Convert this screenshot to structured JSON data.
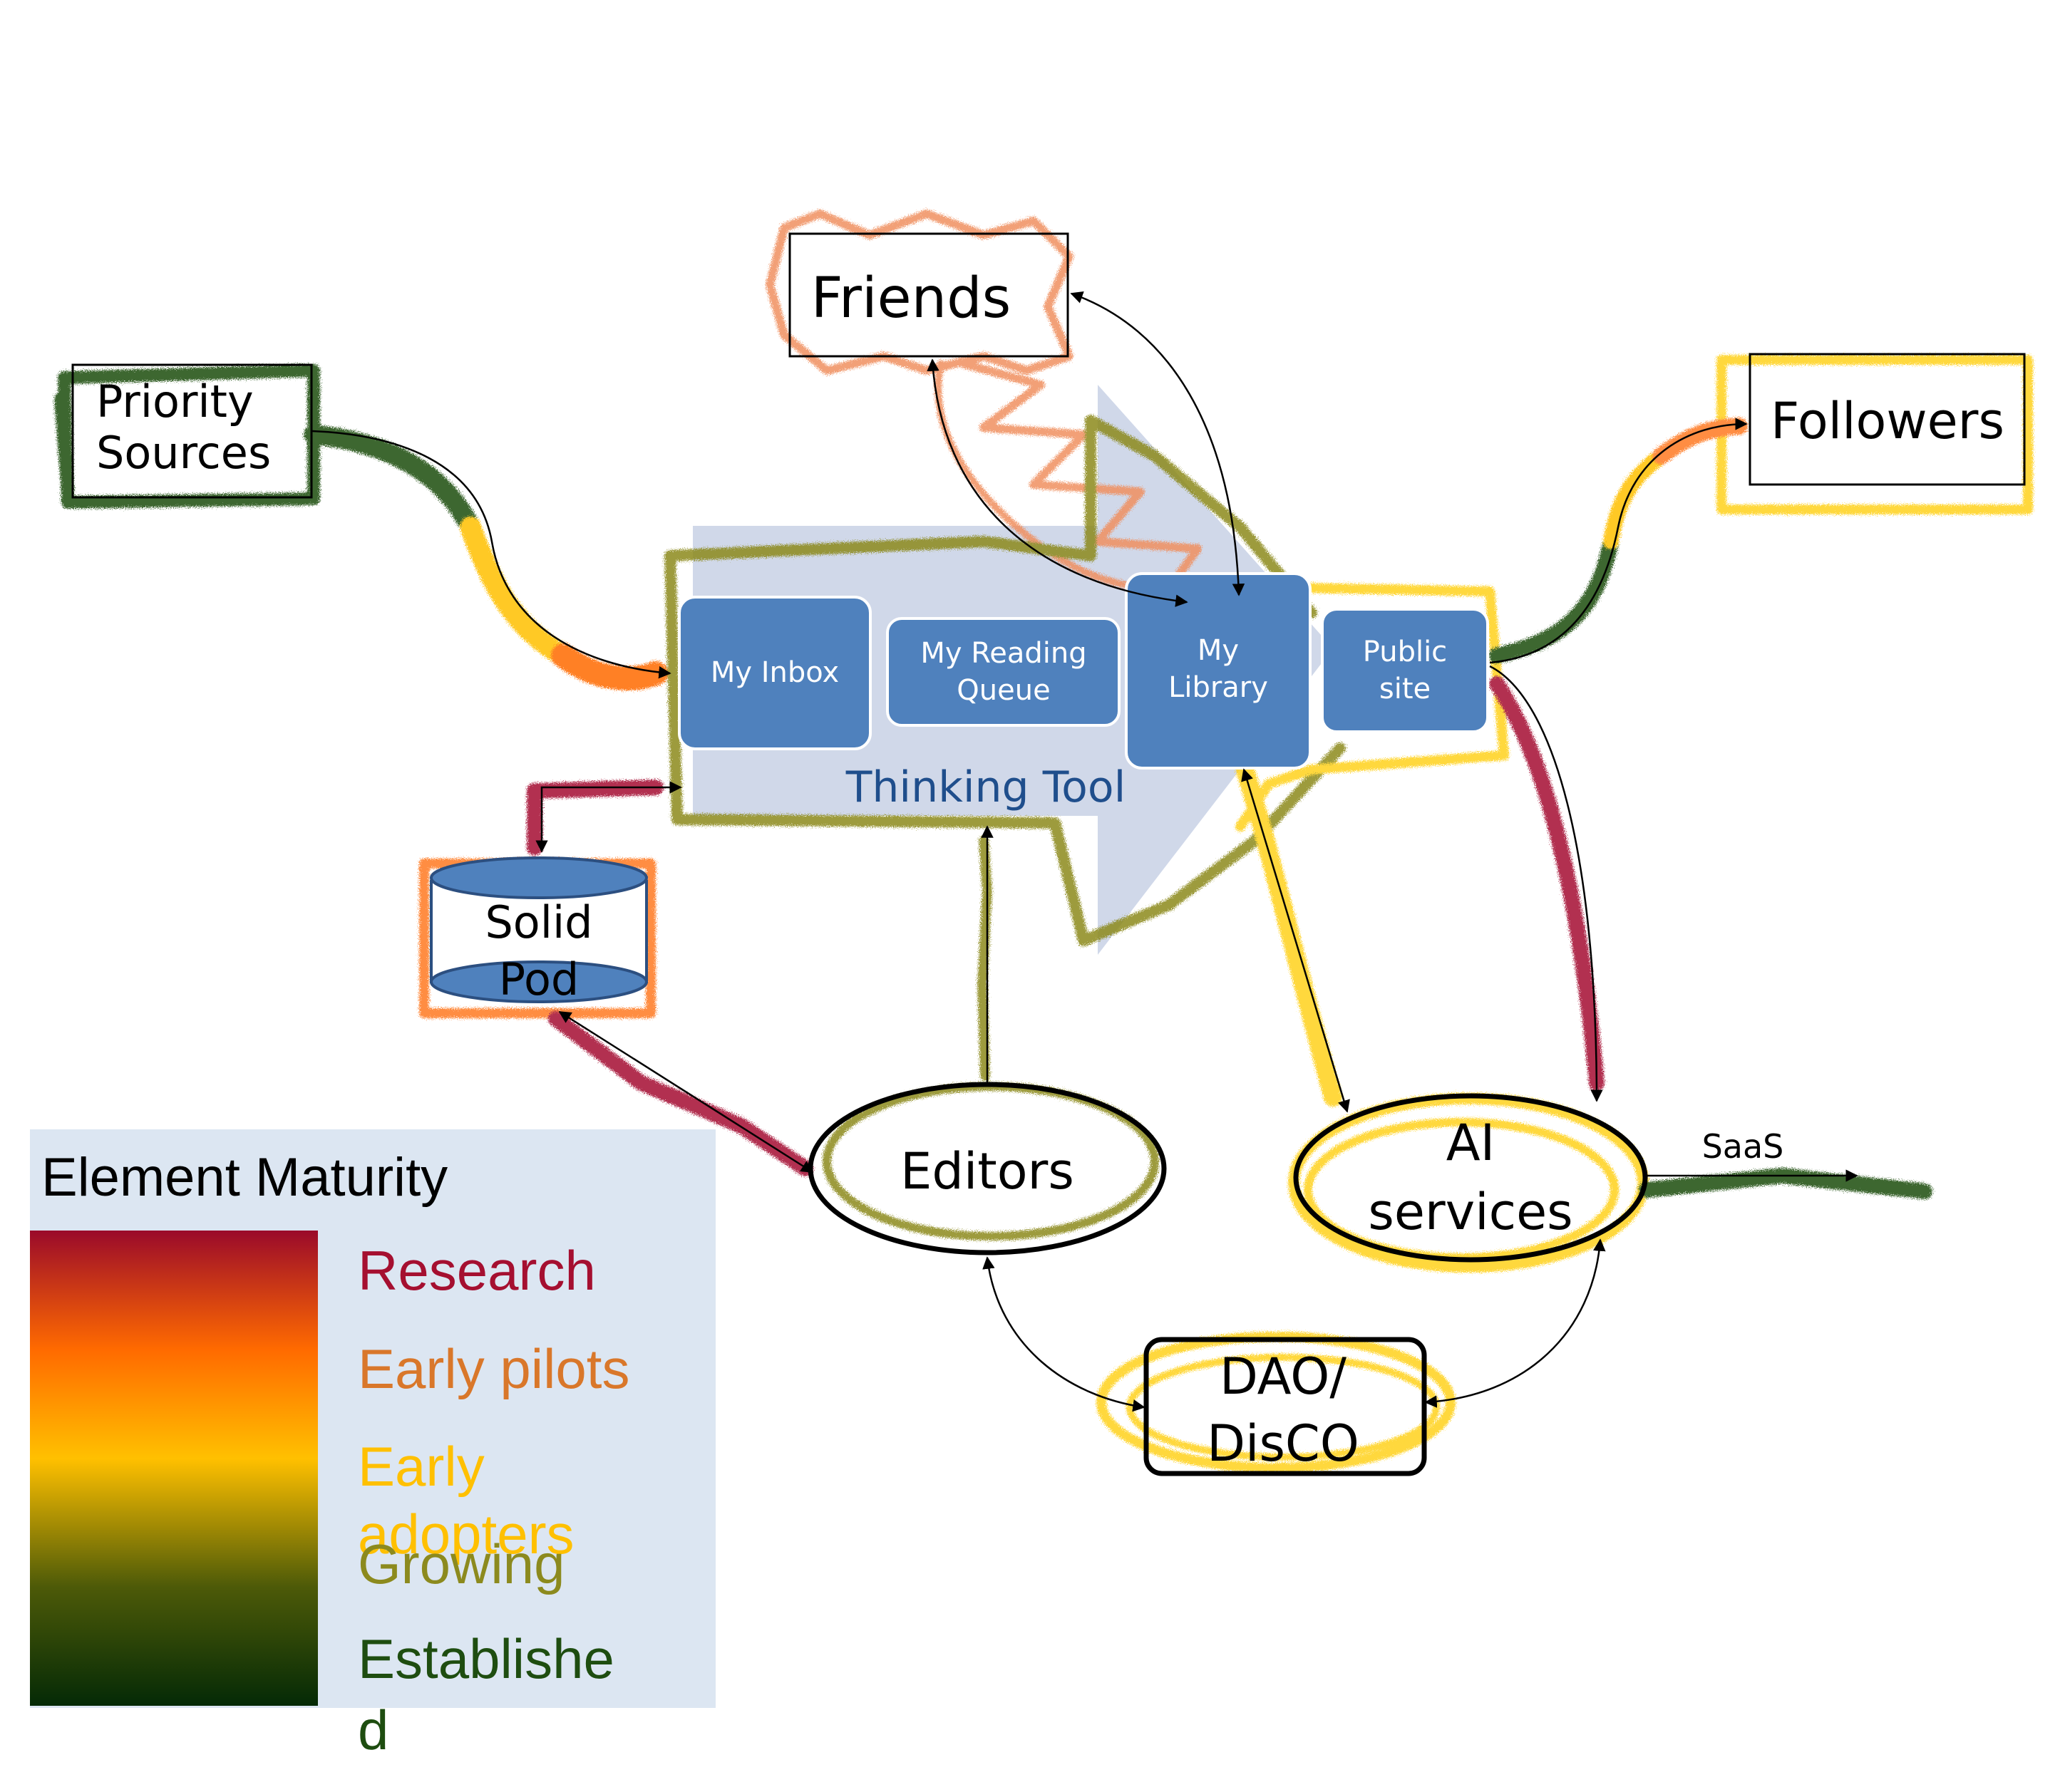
{
  "nodes": {
    "friends": "Friends",
    "priority_line1": "Priority",
    "priority_line2": "Sources",
    "followers": "Followers",
    "inbox": "My Inbox",
    "queue_line1": "My Reading",
    "queue_line2": "Queue",
    "library_line1": "My",
    "library_line2": "Library",
    "public_line1": "Public",
    "public_line2": "site",
    "thinking_tool": "Thinking Tool",
    "solid_line1": "Solid",
    "solid_line2": "Pod",
    "editors": "Editors",
    "ai_line1": "AI",
    "ai_line2": "services",
    "saas": "SaaS",
    "dao_line1": "DAO/",
    "dao_line2": "DisCO"
  },
  "legend": {
    "title": "Element Maturity",
    "research": "Research",
    "early_pilots": "Early pilots",
    "early_adopters_line1": "Early",
    "early_adopters_line2": "adopters",
    "growing": "Growing",
    "established_line1": "Establishe",
    "established_line2": "d"
  },
  "colors": {
    "research": "#a50f30",
    "early_pilots": "#d9772a",
    "early_adopters": "#ffc000",
    "growing": "#8c8a1e",
    "established": "#1e4d10",
    "box_blue": "#4f81bd",
    "arrow_blue": "#cdd6e8",
    "legend_bg": "#dce6f2",
    "tool_label": "#1f4e8c"
  }
}
